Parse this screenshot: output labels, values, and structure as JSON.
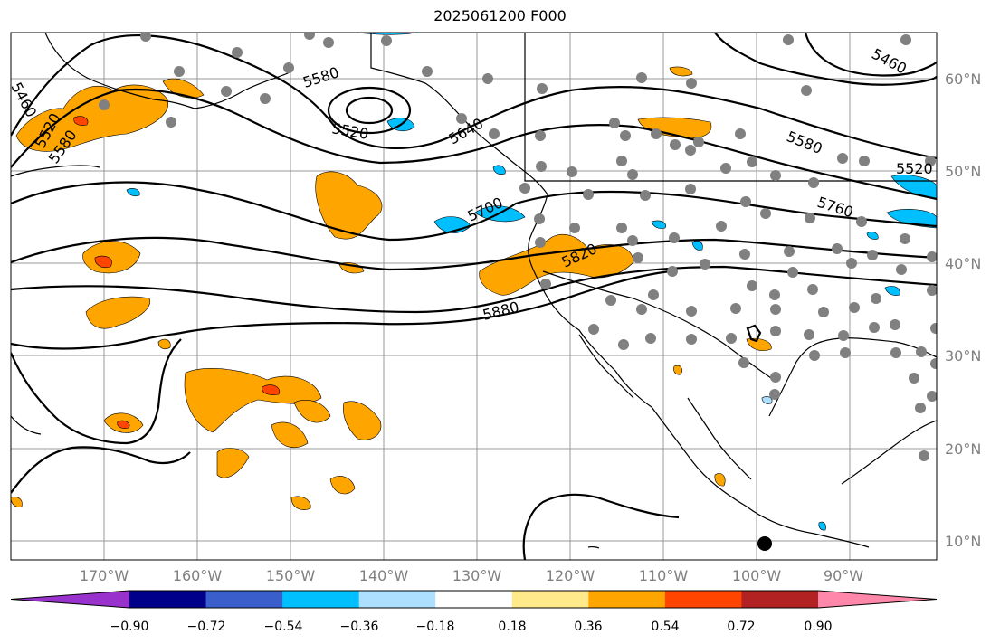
{
  "title": "2025061200 F000",
  "map": {
    "lon_labels": [
      "170°W",
      "160°W",
      "150°W",
      "140°W",
      "130°W",
      "120°W",
      "110°W",
      "100°W",
      "90°W"
    ],
    "lat_labels": [
      "60°N",
      "50°N",
      "40°N",
      "30°N",
      "20°N",
      "10°N"
    ],
    "contour_labels": [
      "5460",
      "5520",
      "5580",
      "5520",
      "5580",
      "5640",
      "5700",
      "5760",
      "5820",
      "5880",
      "5520",
      "5460",
      "5580",
      "5520"
    ]
  },
  "colorbar": {
    "ticks": [
      "−0.90",
      "−0.72",
      "−0.54",
      "−0.36",
      "−0.18",
      "0.18",
      "0.36",
      "0.54",
      "0.72",
      "0.90"
    ],
    "colors": [
      "#9932CC",
      "#00008B",
      "#3A5FCD",
      "#00BFFF",
      "#ADDFFF",
      "#FFFFFF",
      "#FFE98A",
      "#FFA500",
      "#FF4500",
      "#B22222",
      "#FF88AA"
    ]
  }
}
